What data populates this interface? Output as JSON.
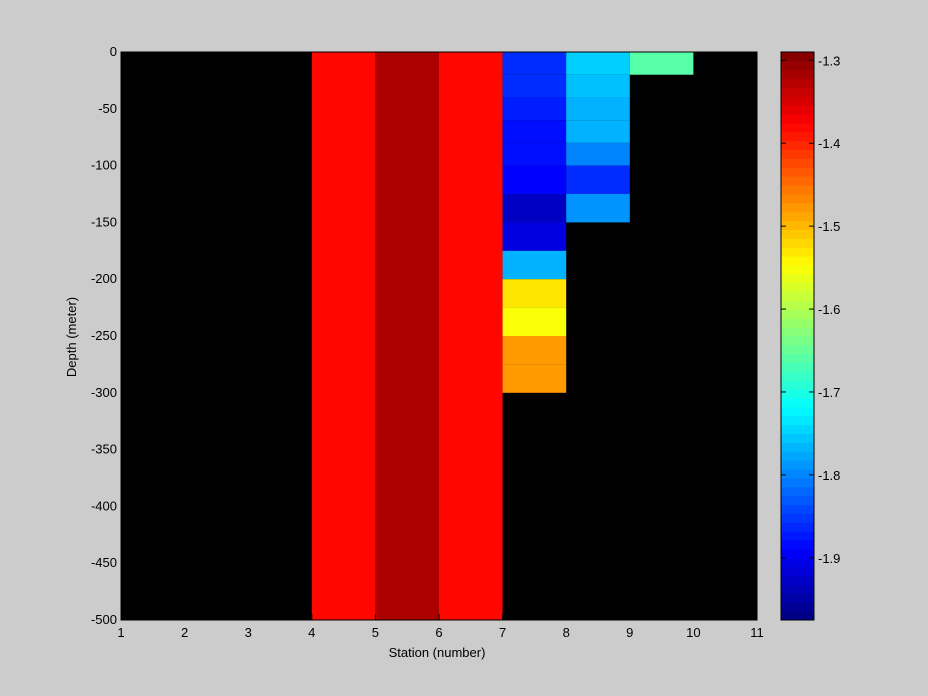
{
  "chart_data": {
    "type": "heatmap",
    "xlabel": "Station (number)",
    "ylabel": "Depth (meter)",
    "xlim": [
      1,
      11
    ],
    "ylim": [
      -500,
      0
    ],
    "x_ticks": [
      1,
      2,
      3,
      4,
      5,
      6,
      7,
      8,
      9,
      10,
      11
    ],
    "y_ticks": [
      0,
      -50,
      -100,
      -150,
      -200,
      -250,
      -300,
      -350,
      -400,
      -450,
      -500
    ],
    "background_color": "#000000",
    "colormap": "jet",
    "clim": [
      -1.975,
      -1.29
    ],
    "colorbar": {
      "position": "right",
      "ticks": [
        -1.3,
        -1.4,
        -1.5,
        -1.6,
        -1.7,
        -1.8,
        -1.9
      ]
    },
    "cells": [
      {
        "x0": 4,
        "x1": 5,
        "y0": 0,
        "y1": -500,
        "value": -1.38
      },
      {
        "x0": 5,
        "x1": 6,
        "y0": 0,
        "y1": -500,
        "value": -1.32
      },
      {
        "x0": 6,
        "x1": 7,
        "y0": 0,
        "y1": -500,
        "value": -1.38
      },
      {
        "x0": 7,
        "x1": 8,
        "y0": 0,
        "y1": -20,
        "value": -1.86
      },
      {
        "x0": 7,
        "x1": 8,
        "y0": -20,
        "y1": -40,
        "value": -1.86
      },
      {
        "x0": 7,
        "x1": 8,
        "y0": -40,
        "y1": -60,
        "value": -1.87
      },
      {
        "x0": 7,
        "x1": 8,
        "y0": -60,
        "y1": -80,
        "value": -1.88
      },
      {
        "x0": 7,
        "x1": 8,
        "y0": -80,
        "y1": -100,
        "value": -1.88
      },
      {
        "x0": 7,
        "x1": 8,
        "y0": -100,
        "y1": -125,
        "value": -1.89
      },
      {
        "x0": 7,
        "x1": 8,
        "y0": -125,
        "y1": -150,
        "value": -1.93
      },
      {
        "x0": 7,
        "x1": 8,
        "y0": -150,
        "y1": -175,
        "value": -1.91
      },
      {
        "x0": 7,
        "x1": 8,
        "y0": -175,
        "y1": -200,
        "value": -1.77
      },
      {
        "x0": 7,
        "x1": 8,
        "y0": -200,
        "y1": -225,
        "value": -1.53
      },
      {
        "x0": 7,
        "x1": 8,
        "y0": -225,
        "y1": -250,
        "value": -1.55
      },
      {
        "x0": 7,
        "x1": 8,
        "y0": -250,
        "y1": -275,
        "value": -1.48
      },
      {
        "x0": 7,
        "x1": 8,
        "y0": -275,
        "y1": -300,
        "value": -1.48
      },
      {
        "x0": 8,
        "x1": 9,
        "y0": 0,
        "y1": -20,
        "value": -1.75
      },
      {
        "x0": 8,
        "x1": 9,
        "y0": -20,
        "y1": -40,
        "value": -1.76
      },
      {
        "x0": 8,
        "x1": 9,
        "y0": -40,
        "y1": -60,
        "value": -1.77
      },
      {
        "x0": 8,
        "x1": 9,
        "y0": -60,
        "y1": -80,
        "value": -1.77
      },
      {
        "x0": 8,
        "x1": 9,
        "y0": -80,
        "y1": -100,
        "value": -1.8
      },
      {
        "x0": 8,
        "x1": 9,
        "y0": -100,
        "y1": -125,
        "value": -1.86
      },
      {
        "x0": 8,
        "x1": 9,
        "y0": -125,
        "y1": -150,
        "value": -1.79
      },
      {
        "x0": 9,
        "x1": 10,
        "y0": 0,
        "y1": -20,
        "value": -1.66
      }
    ]
  }
}
